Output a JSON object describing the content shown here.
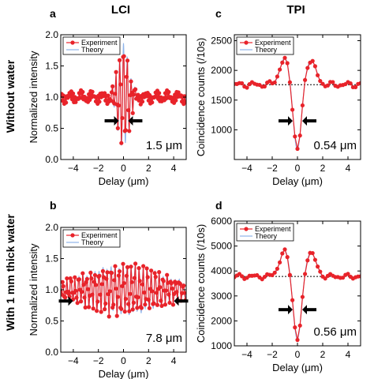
{
  "figure": {
    "column_titles": [
      "LCI",
      "TPI"
    ],
    "row_titles": [
      "Without water",
      "With 1 mm thick water"
    ]
  },
  "colors": {
    "experiment": "#e8232a",
    "theory": "#8fb4ea",
    "baseline": "#000000",
    "arrow": "#000000"
  },
  "chart_data": [
    {
      "panel": "a",
      "type": "line",
      "xlabel": "Delay (μm)",
      "ylabel": "Normalized intensity",
      "xlim": [
        -5,
        5
      ],
      "ylim": [
        0,
        2
      ],
      "xticks": [
        -4,
        -2,
        0,
        2,
        4
      ],
      "yticks": [
        0.0,
        0.5,
        1.0,
        1.5,
        2.0
      ],
      "ytick_decimals": 1,
      "legend": [
        "Experiment",
        "Theory"
      ],
      "legend_position": "top-left",
      "width_label": "1.5 μm",
      "model": {
        "kind": "lci",
        "base": 1.0,
        "amp": 0.82,
        "sigma": 0.45,
        "period": 0.3,
        "phase": 0,
        "ripple": 0.05
      },
      "arrows": [
        -0.75,
        0.75
      ],
      "arrow_level": 0.62
    },
    {
      "panel": "b",
      "type": "line",
      "xlabel": "Delay (μm)",
      "ylabel": "Normalized intensity",
      "xlim": [
        -5,
        5
      ],
      "ylim": [
        0,
        2
      ],
      "xticks": [
        -4,
        -2,
        0,
        2,
        4
      ],
      "yticks": [
        0.0,
        0.5,
        1.0,
        1.5,
        2.0
      ],
      "ytick_decimals": 1,
      "legend": [
        "Experiment",
        "Theory"
      ],
      "legend_position": "top-left",
      "width_label": "7.8 μm",
      "model": {
        "kind": "lci",
        "base": 1.0,
        "amp": 0.38,
        "sigma": 3.2,
        "period": 0.32,
        "phase": 0.6,
        "ripple": 0.03
      },
      "arrows": [
        -4.4,
        4.4
      ],
      "arrow_level": 0.82
    },
    {
      "panel": "c",
      "type": "line",
      "xlabel": "Delay (μm)",
      "ylabel": "Coincidence counts (/10s)",
      "xlim": [
        -5,
        5
      ],
      "ylim": [
        500,
        2600
      ],
      "xticks": [
        -4,
        -2,
        0,
        2,
        4
      ],
      "yticks": [
        1000,
        1500,
        2000,
        2500
      ],
      "ytick_decimals": 0,
      "legend": [
        "Experiment",
        "Theory"
      ],
      "legend_position": "top-left",
      "width_label": "0.54 μm",
      "model": {
        "kind": "tpi",
        "base": 1760,
        "dip": 1150,
        "dip_sigma": 0.32,
        "side_amp": 420,
        "side_pos": 1.0,
        "side_sigma": 0.42,
        "ripple": 35
      },
      "arrows": [
        -0.75,
        0.75
      ],
      "arrow_level": 1150
    },
    {
      "panel": "d",
      "type": "line",
      "xlabel": "Delay (μm)",
      "ylabel": "Coincidence counts (/10s)",
      "xlim": [
        -5,
        5
      ],
      "ylim": [
        1000,
        6000
      ],
      "xticks": [
        -4,
        -2,
        0,
        2,
        4
      ],
      "yticks": [
        1000,
        2000,
        3000,
        4000,
        5000,
        6000
      ],
      "ytick_decimals": 0,
      "legend": [
        "Experiment",
        "Theory"
      ],
      "legend_position": "top-left",
      "width_label": "0.56 μm",
      "model": {
        "kind": "tpi",
        "base": 3780,
        "dip": 2650,
        "dip_sigma": 0.33,
        "side_amp": 1000,
        "side_pos": 1.0,
        "side_sigma": 0.42,
        "ripple": 70
      },
      "arrows": [
        -0.75,
        0.75
      ],
      "arrow_level": 2450
    }
  ]
}
